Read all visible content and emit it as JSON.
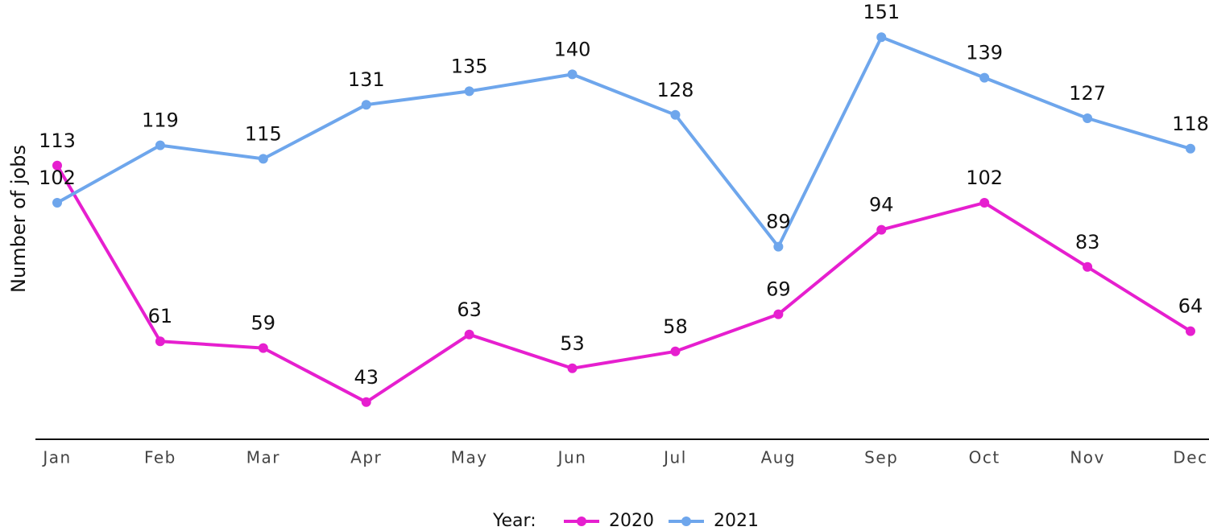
{
  "chart_data": {
    "type": "line",
    "y_label": "Number of jobs",
    "categories": [
      "Jan",
      "Feb",
      "Mar",
      "Apr",
      "May",
      "Jun",
      "Jul",
      "Aug",
      "Sep",
      "Oct",
      "Nov",
      "Dec"
    ],
    "series": [
      {
        "name": "2020",
        "color": "#e61fcf",
        "values": [
          113,
          61,
          59,
          43,
          63,
          53,
          58,
          69,
          94,
          102,
          83,
          64
        ]
      },
      {
        "name": "2021",
        "color": "#6ea6ec",
        "values": [
          102,
          119,
          115,
          131,
          135,
          140,
          128,
          89,
          151,
          139,
          127,
          118
        ]
      }
    ],
    "ylim": [
      32,
      162
    ],
    "legend_title": "Year:",
    "legend": "bottom"
  }
}
